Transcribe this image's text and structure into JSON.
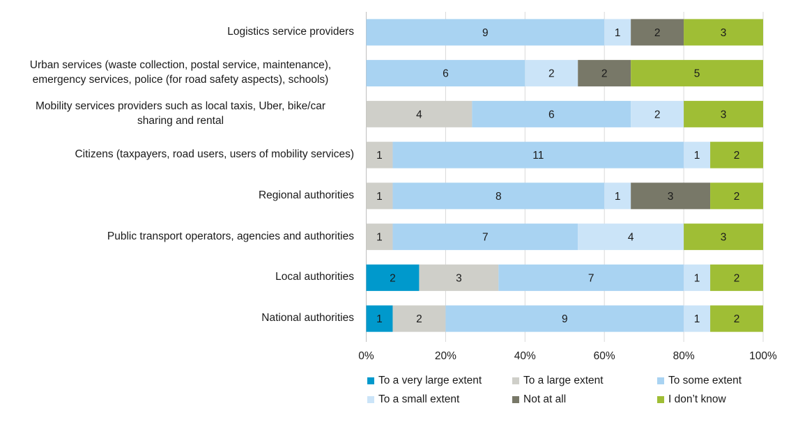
{
  "chart_data": {
    "type": "bar",
    "orientation": "horizontal",
    "stacked": "percent",
    "title": "",
    "xlabel": "",
    "ylabel": "",
    "xlim": [
      0,
      100
    ],
    "x_ticks": [
      "0%",
      "20%",
      "40%",
      "60%",
      "80%",
      "100%"
    ],
    "grid": true,
    "legend_position": "bottom",
    "categories": [
      "Logistics service providers",
      "Urban services (waste collection, postal service, maintenance), emergency services, police (for road safety aspects), schools)",
      "Mobility services providers such as local taxis, Uber, bike/car sharing and rental",
      "Citizens (taxpayers, road users, users of mobility services)",
      "Regional authorities",
      "Public transport operators, agencies and authorities",
      "Local authorities",
      "National authorities"
    ],
    "category_lines": [
      [
        "Logistics service providers"
      ],
      [
        "Urban services (waste collection, postal service, maintenance),",
        "emergency services, police (for road safety aspects), schools)"
      ],
      [
        "Mobility services providers such as local taxis, Uber, bike/car",
        "sharing and rental"
      ],
      [
        "Citizens (taxpayers, road users, users of mobility services)"
      ],
      [
        "Regional authorities"
      ],
      [
        "Public transport operators, agencies and authorities"
      ],
      [
        "Local authorities"
      ],
      [
        "National authorities"
      ]
    ],
    "series": [
      {
        "name": "To a very large extent",
        "color": "#0099cc",
        "values": [
          0,
          0,
          0,
          0,
          0,
          0,
          2,
          1
        ]
      },
      {
        "name": "To a large extent",
        "color": "#cfcfc9",
        "values": [
          0,
          0,
          4,
          1,
          1,
          1,
          3,
          2
        ]
      },
      {
        "name": "To some extent",
        "color": "#a9d3f2",
        "values": [
          9,
          6,
          6,
          11,
          8,
          7,
          7,
          9
        ]
      },
      {
        "name": "To a small extent",
        "color": "#cbe4f8",
        "values": [
          1,
          2,
          2,
          1,
          1,
          4,
          1,
          1
        ]
      },
      {
        "name": "Not at all",
        "color": "#787868",
        "values": [
          2,
          2,
          0,
          0,
          3,
          0,
          0,
          0
        ]
      },
      {
        "name": "I don’t know",
        "color": "#9fbe35",
        "values": [
          3,
          5,
          3,
          2,
          2,
          3,
          2,
          2
        ]
      }
    ]
  }
}
